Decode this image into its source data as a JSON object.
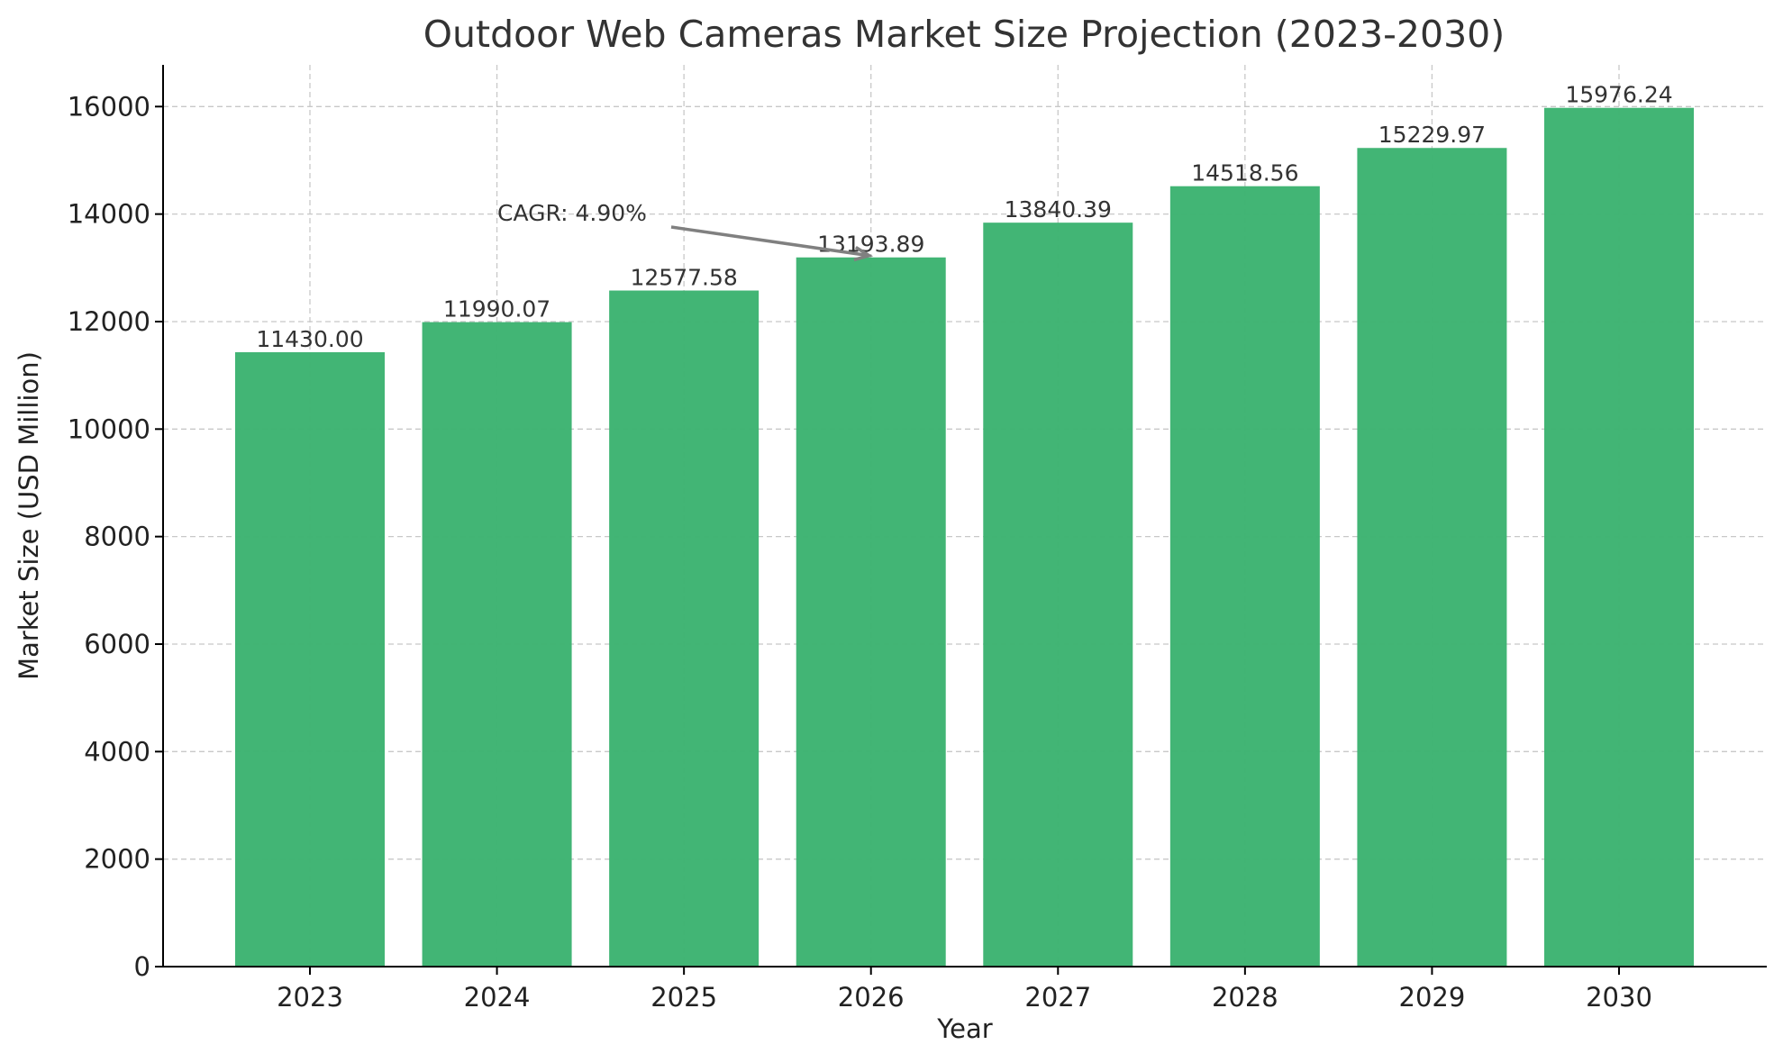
{
  "chart_data": {
    "type": "bar",
    "title": "Outdoor Web Cameras Market Size Projection (2023-2030)",
    "xlabel": "Year",
    "ylabel": "Market Size (USD Million)",
    "categories": [
      "2023",
      "2024",
      "2025",
      "2026",
      "2027",
      "2028",
      "2029",
      "2030"
    ],
    "values": [
      11430.0,
      11990.07,
      12577.58,
      13193.89,
      13840.39,
      14518.56,
      15229.97,
      15976.24
    ],
    "value_labels": [
      "11430.00",
      "11990.07",
      "12577.58",
      "13193.89",
      "13840.39",
      "14518.56",
      "15229.97",
      "15976.24"
    ],
    "ylim": [
      0,
      16776
    ],
    "yticks": [
      0,
      2000,
      4000,
      6000,
      8000,
      10000,
      12000,
      14000,
      16000
    ],
    "grid": true,
    "bar_color": "#3cb371",
    "annotation": {
      "text": "CAGR: 4.90%",
      "points_to_category": "2026",
      "points_to_value": 13193.89,
      "arrow_color": "#808080"
    }
  }
}
